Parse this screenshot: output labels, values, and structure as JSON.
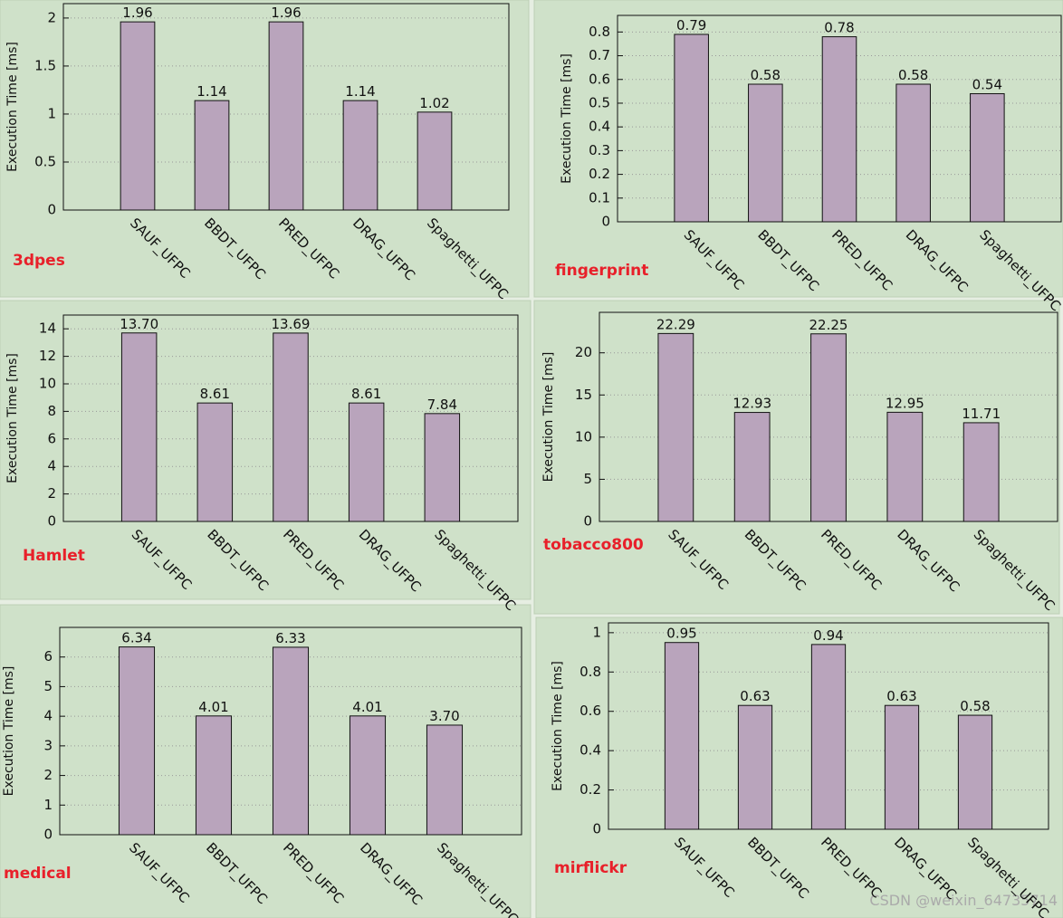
{
  "chart_data": [
    {
      "type": "bar",
      "title": "3dpes",
      "ylabel": "Execution Time [ms]",
      "categories": [
        "SAUF_UFPC",
        "BBDT_UFPC",
        "PRED_UFPC",
        "DRAG_UFPC",
        "Spaghetti_UFPC"
      ],
      "values": [
        1.96,
        1.14,
        1.96,
        1.14,
        1.02
      ],
      "value_labels": [
        "1.96",
        "1.14",
        "1.96",
        "1.14",
        "1.02"
      ],
      "color": "#b9a4bc",
      "ylim": [
        0,
        2.15
      ],
      "yticks": [
        0,
        0.5,
        1,
        1.5,
        2
      ],
      "grid": true
    },
    {
      "type": "bar",
      "title": "fingerprint",
      "ylabel": "Execution Time [ms]",
      "categories": [
        "SAUF_UFPC",
        "BBDT_UFPC",
        "PRED_UFPC",
        "DRAG_UFPC",
        "Spaghetti_UFPC"
      ],
      "values": [
        0.79,
        0.58,
        0.78,
        0.58,
        0.54
      ],
      "value_labels": [
        "0.79",
        "0.58",
        "0.78",
        "0.58",
        "0.54"
      ],
      "color": "#b9a4bc",
      "ylim": [
        0,
        0.87
      ],
      "yticks": [
        0,
        0.1,
        0.2,
        0.3,
        0.4,
        0.5,
        0.6,
        0.7,
        0.8
      ],
      "grid": true
    },
    {
      "type": "bar",
      "title": "Hamlet",
      "ylabel": "Execution Time [ms]",
      "categories": [
        "SAUF_UFPC",
        "BBDT_UFPC",
        "PRED_UFPC",
        "DRAG_UFPC",
        "Spaghetti_UFPC"
      ],
      "values": [
        13.7,
        8.61,
        13.69,
        8.61,
        7.84
      ],
      "value_labels": [
        "13.70",
        "8.61",
        "13.69",
        "8.61",
        "7.84"
      ],
      "color": "#b9a4bc",
      "ylim": [
        0,
        15
      ],
      "yticks": [
        0,
        2,
        4,
        6,
        8,
        10,
        12,
        14
      ],
      "grid": true
    },
    {
      "type": "bar",
      "title": "tobacco800",
      "ylabel": "Execution Time [ms]",
      "categories": [
        "SAUF_UFPC",
        "BBDT_UFPC",
        "PRED_UFPC",
        "DRAG_UFPC",
        "Spaghetti_UFPC"
      ],
      "values": [
        22.29,
        12.93,
        22.25,
        12.95,
        11.71
      ],
      "value_labels": [
        "22.29",
        "12.93",
        "22.25",
        "12.95",
        "11.71"
      ],
      "color": "#b9a4bc",
      "ylim": [
        0,
        24.8
      ],
      "yticks": [
        0,
        5,
        10,
        15,
        20
      ],
      "grid": true
    },
    {
      "type": "bar",
      "title": "medical",
      "ylabel": "Execution Time [ms]",
      "categories": [
        "SAUF_UFPC",
        "BBDT_UFPC",
        "PRED_UFPC",
        "DRAG_UFPC",
        "Spaghetti_UFPC"
      ],
      "values": [
        6.34,
        4.01,
        6.33,
        4.01,
        3.7
      ],
      "value_labels": [
        "6.34",
        "4.01",
        "6.33",
        "4.01",
        "3.70"
      ],
      "color": "#b9a4bc",
      "ylim": [
        0,
        7
      ],
      "yticks": [
        0,
        1,
        2,
        3,
        4,
        5,
        6
      ],
      "grid": true
    },
    {
      "type": "bar",
      "title": "mirflickr",
      "ylabel": "Execution Time [ms]",
      "categories": [
        "SAUF_UFPC",
        "BBDT_UFPC",
        "PRED_UFPC",
        "DRAG_UFPC",
        "Spaghetti_UFPC"
      ],
      "values": [
        0.95,
        0.63,
        0.94,
        0.63,
        0.58
      ],
      "value_labels": [
        "0.95",
        "0.63",
        "0.94",
        "0.63",
        "0.58"
      ],
      "color": "#b9a4bc",
      "ylim": [
        0,
        1.05
      ],
      "yticks": [
        0,
        0.2,
        0.4,
        0.6,
        0.8,
        1
      ],
      "grid": true
    }
  ],
  "watermark": "CSDN @weixin_64735714"
}
